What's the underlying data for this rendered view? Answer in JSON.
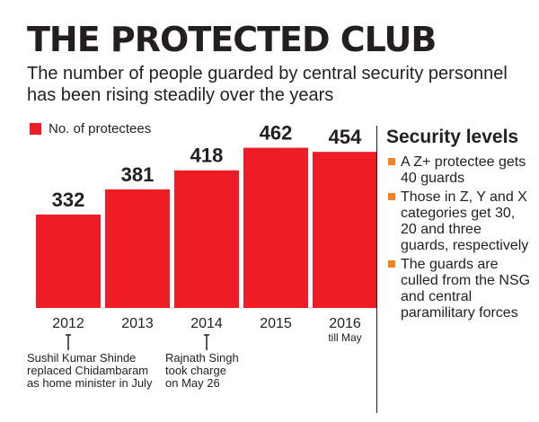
{
  "title": "THE PROTECTED CLUB",
  "subtitle": "The number of people guarded by central security personnel has been rising steadily over the years",
  "legend": {
    "label": "No. of protectees"
  },
  "colors": {
    "bar": "#ee1c25",
    "bullet": "#f58220",
    "text": "#231f20"
  },
  "chart_data": {
    "type": "bar",
    "categories": [
      "2012",
      "2013",
      "2014",
      "2015",
      "2016"
    ],
    "category_sublabels": [
      "",
      "",
      "",
      "",
      "till May"
    ],
    "series": [
      {
        "name": "No. of protectees",
        "values": [
          332,
          381,
          418,
          462,
          454
        ]
      }
    ],
    "title": "THE PROTECTED CLUB",
    "subtitle": "The number of people guarded by central security personnel has been rising steadily over the years",
    "ylim": [
      150,
      470
    ],
    "grid": false,
    "legend_position": "top-left",
    "annotations": [
      {
        "category": "2012",
        "text": "Sushil Kumar Shinde replaced Chidambaram as home minister in July"
      },
      {
        "category": "2014",
        "text": "Rajnath Singh took charge on May 26"
      }
    ]
  },
  "notes": [
    {
      "text": "Sushil Kumar Shinde\nreplaced Chidambaram\nas home minister in July"
    },
    {
      "text": "Rajnath Singh\ntook charge\non May 26"
    }
  ],
  "sidebar": {
    "title": "Security levels",
    "items": [
      {
        "text": "A Z+ protectee gets 40 guards"
      },
      {
        "text": "Those in Z, Y and X categories get 30, 20 and three guards, respectively"
      },
      {
        "text": "The guards are culled from the NSG and central paramilitary forces"
      }
    ]
  }
}
